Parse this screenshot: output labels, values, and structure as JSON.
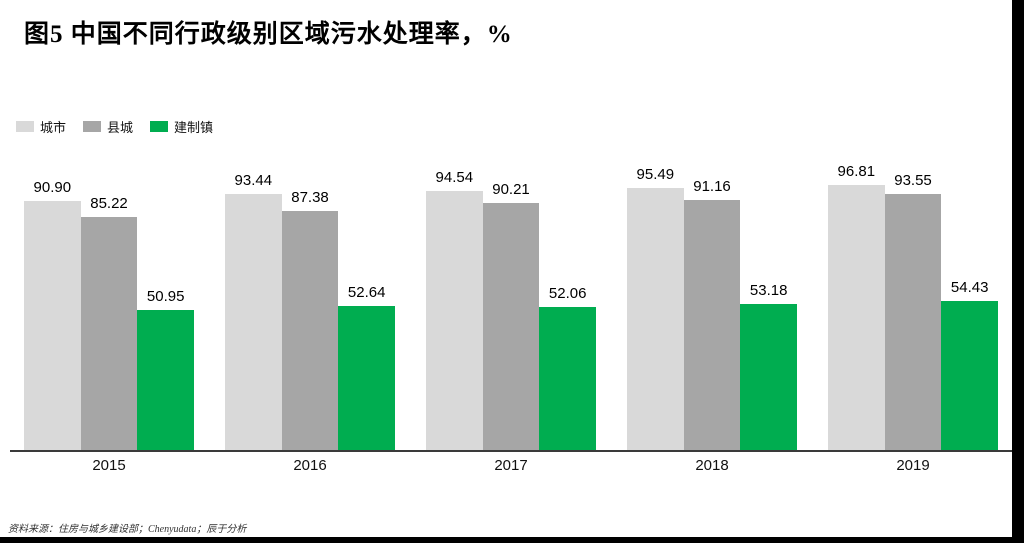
{
  "title": "图5 中国不同行政级别区域污水处理率，%",
  "source_note": "资料来源：住房与城乡建设部；Chenyudata；辰于分析",
  "colors": {
    "city_bar": "#d9d9d9",
    "county_bar": "#a6a6a6",
    "town_bar": "#00ad50",
    "axis_line": "#3a3a3a",
    "page_edge": "#000000"
  },
  "chart_data": {
    "type": "bar",
    "title": "图5 中国不同行政级别区域污水处理率，%",
    "categories": [
      "2015",
      "2016",
      "2017",
      "2018",
      "2019"
    ],
    "series": [
      {
        "name": "城市",
        "color": "#d9d9d9",
        "values": [
          90.9,
          93.44,
          94.54,
          95.49,
          96.81
        ]
      },
      {
        "name": "县城",
        "color": "#a6a6a6",
        "values": [
          85.22,
          87.38,
          90.21,
          91.16,
          93.55
        ]
      },
      {
        "name": "建制镇",
        "color": "#00ad50",
        "values": [
          50.95,
          52.64,
          52.06,
          53.18,
          54.43
        ]
      }
    ],
    "xlabel": "",
    "ylabel": "",
    "ylim": [
      0,
      100
    ],
    "grid": false,
    "legend_position": "top-left",
    "value_labels": true,
    "value_label_decimals": 2
  }
}
